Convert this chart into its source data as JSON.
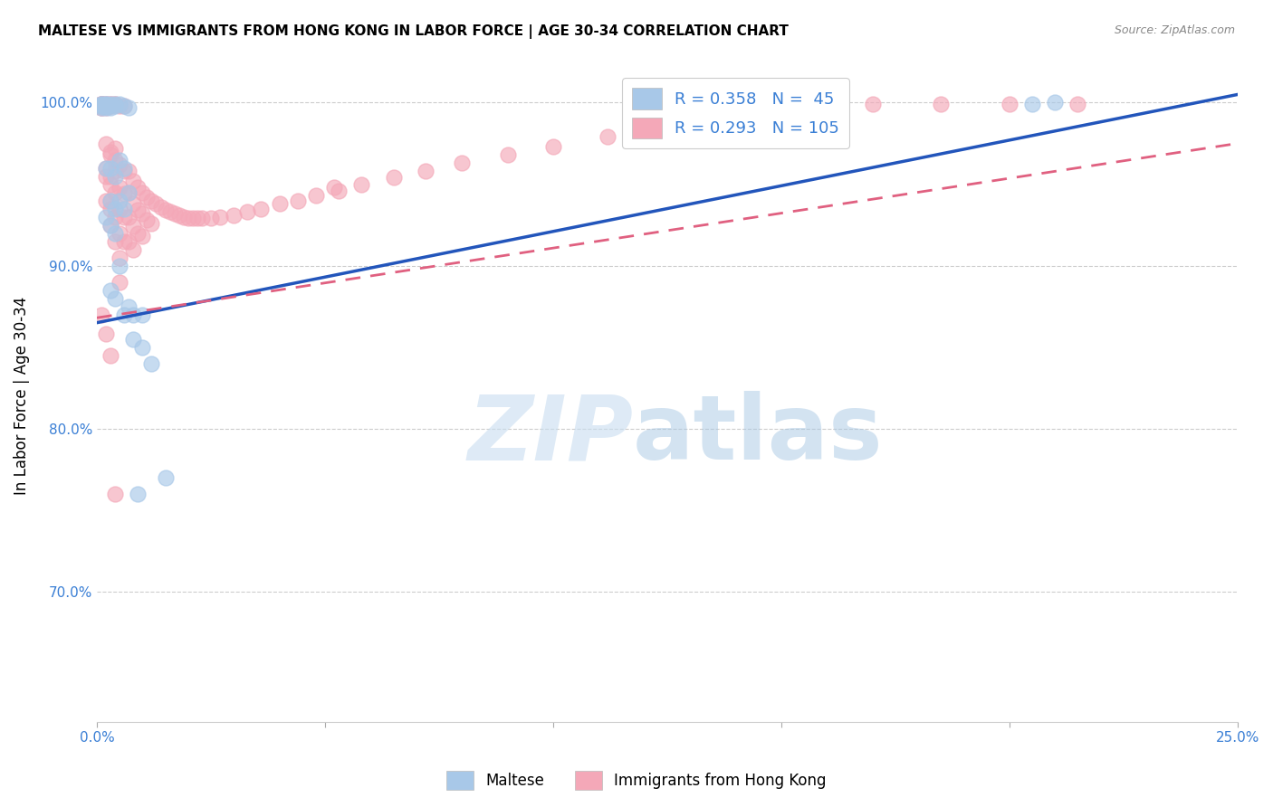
{
  "title": "MALTESE VS IMMIGRANTS FROM HONG KONG IN LABOR FORCE | AGE 30-34 CORRELATION CHART",
  "source": "Source: ZipAtlas.com",
  "ylabel_label": "In Labor Force | Age 30-34",
  "x_min": 0.0,
  "x_max": 0.25,
  "y_min": 0.62,
  "y_max": 1.02,
  "x_ticks": [
    0.0,
    0.05,
    0.1,
    0.15,
    0.2,
    0.25
  ],
  "x_tick_labels": [
    "0.0%",
    "",
    "",
    "",
    "",
    "25.0%"
  ],
  "y_ticks": [
    0.7,
    0.8,
    0.9,
    1.0
  ],
  "y_tick_labels": [
    "70.0%",
    "80.0%",
    "90.0%",
    "100.0%"
  ],
  "legend_R1": "0.358",
  "legend_N1": " 45",
  "legend_R2": "0.293",
  "legend_N2": "105",
  "color_blue": "#a8c8e8",
  "color_pink": "#f4a8b8",
  "line_blue": "#2255bb",
  "line_pink": "#e06080",
  "blue_line_x0": 0.0,
  "blue_line_y0": 0.865,
  "blue_line_x1": 0.25,
  "blue_line_y1": 1.005,
  "pink_line_x0": 0.0,
  "pink_line_y0": 0.868,
  "pink_line_x1": 0.25,
  "pink_line_y1": 0.975,
  "blue_scatter_x": [
    0.001,
    0.001,
    0.001,
    0.001,
    0.001,
    0.002,
    0.002,
    0.002,
    0.002,
    0.002,
    0.002,
    0.002,
    0.003,
    0.003,
    0.003,
    0.003,
    0.003,
    0.003,
    0.003,
    0.004,
    0.004,
    0.004,
    0.004,
    0.004,
    0.004,
    0.005,
    0.005,
    0.005,
    0.005,
    0.006,
    0.006,
    0.006,
    0.006,
    0.007,
    0.007,
    0.007,
    0.008,
    0.008,
    0.009,
    0.01,
    0.01,
    0.012,
    0.015,
    0.205,
    0.21
  ],
  "blue_scatter_y": [
    0.999,
    0.998,
    0.999,
    0.998,
    0.997,
    0.998,
    0.999,
    0.997,
    0.999,
    0.998,
    0.93,
    0.96,
    0.999,
    0.998,
    0.997,
    0.94,
    0.925,
    0.96,
    0.885,
    0.999,
    0.998,
    0.955,
    0.935,
    0.92,
    0.88,
    0.999,
    0.965,
    0.94,
    0.9,
    0.998,
    0.96,
    0.935,
    0.87,
    0.997,
    0.945,
    0.875,
    0.87,
    0.855,
    0.76,
    0.87,
    0.85,
    0.84,
    0.77,
    0.999,
    1.0
  ],
  "pink_scatter_x": [
    0.001,
    0.001,
    0.001,
    0.001,
    0.001,
    0.001,
    0.001,
    0.001,
    0.002,
    0.002,
    0.002,
    0.002,
    0.002,
    0.002,
    0.002,
    0.002,
    0.002,
    0.002,
    0.003,
    0.003,
    0.003,
    0.003,
    0.003,
    0.003,
    0.003,
    0.003,
    0.003,
    0.003,
    0.004,
    0.004,
    0.004,
    0.004,
    0.004,
    0.004,
    0.004,
    0.004,
    0.005,
    0.005,
    0.005,
    0.005,
    0.005,
    0.005,
    0.005,
    0.006,
    0.006,
    0.006,
    0.006,
    0.006,
    0.007,
    0.007,
    0.007,
    0.007,
    0.008,
    0.008,
    0.008,
    0.008,
    0.009,
    0.009,
    0.009,
    0.01,
    0.01,
    0.01,
    0.011,
    0.011,
    0.012,
    0.012,
    0.013,
    0.014,
    0.015,
    0.016,
    0.017,
    0.018,
    0.019,
    0.02,
    0.021,
    0.022,
    0.023,
    0.025,
    0.027,
    0.03,
    0.033,
    0.036,
    0.04,
    0.044,
    0.048,
    0.053,
    0.058,
    0.065,
    0.072,
    0.08,
    0.09,
    0.1,
    0.112,
    0.125,
    0.14,
    0.155,
    0.17,
    0.185,
    0.2,
    0.215,
    0.001,
    0.002,
    0.003,
    0.004,
    0.052
  ],
  "pink_scatter_y": [
    0.999,
    0.998,
    0.999,
    0.997,
    0.999,
    0.998,
    0.997,
    0.999,
    0.998,
    0.997,
    0.999,
    0.998,
    0.975,
    0.96,
    0.999,
    0.998,
    0.955,
    0.94,
    0.999,
    0.998,
    0.97,
    0.955,
    0.94,
    0.925,
    0.999,
    0.968,
    0.95,
    0.935,
    0.999,
    0.972,
    0.958,
    0.945,
    0.93,
    0.915,
    0.999,
    0.965,
    0.998,
    0.962,
    0.948,
    0.935,
    0.92,
    0.905,
    0.89,
    0.998,
    0.958,
    0.944,
    0.93,
    0.915,
    0.958,
    0.945,
    0.93,
    0.915,
    0.952,
    0.938,
    0.924,
    0.91,
    0.948,
    0.934,
    0.92,
    0.945,
    0.932,
    0.918,
    0.942,
    0.928,
    0.94,
    0.926,
    0.938,
    0.936,
    0.934,
    0.933,
    0.932,
    0.931,
    0.93,
    0.929,
    0.929,
    0.929,
    0.929,
    0.929,
    0.93,
    0.931,
    0.933,
    0.935,
    0.938,
    0.94,
    0.943,
    0.946,
    0.95,
    0.954,
    0.958,
    0.963,
    0.968,
    0.973,
    0.979,
    0.985,
    0.99,
    0.995,
    0.999,
    0.999,
    0.999,
    0.999,
    0.87,
    0.858,
    0.845,
    0.76,
    0.948
  ]
}
